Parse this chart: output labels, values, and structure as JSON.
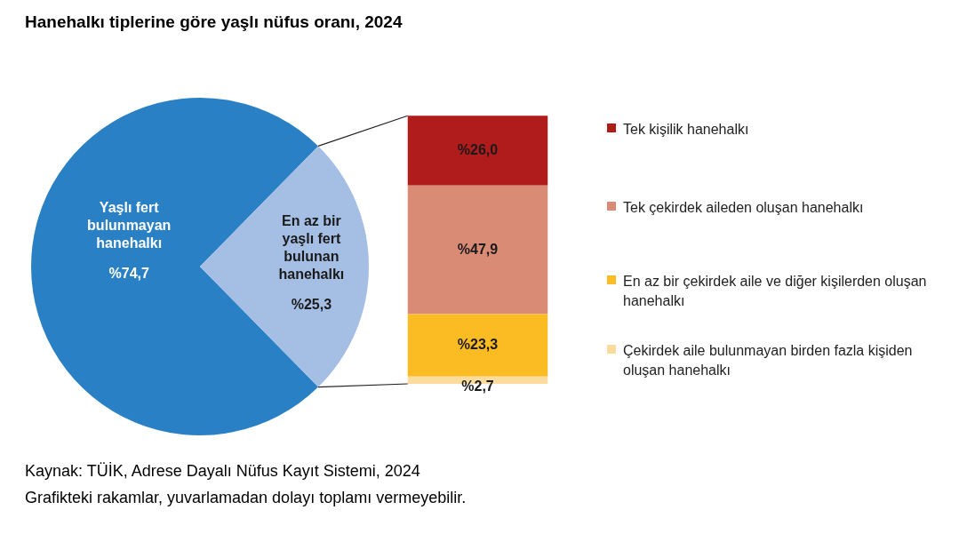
{
  "chart_data": [
    {
      "type": "pie",
      "title": "Hanehalkı tiplerine göre yaşlı nüfus oranı, 2024",
      "categories": [
        "Yaşlı fert bulunmayan hanehalkı",
        "En az bir yaşlı fert bulunan hanehalkı"
      ],
      "values": [
        74.7,
        25.3
      ],
      "value_labels": [
        "%74,7",
        "%25,3"
      ],
      "colors": [
        "#2a80c5",
        "#a4bee4"
      ],
      "annotations": [
        "Kaynak: TÜİK, Adrese Dayalı Nüfus Kayıt Sistemi, 2024",
        "Grafikteki rakamlar, yuvarlamadan dolayı toplamı vermeyebilir."
      ]
    },
    {
      "type": "bar",
      "stacked": true,
      "categories": [
        null
      ],
      "legend": "right",
      "series": [
        {
          "name": "Çekirdek aile bulunmayan birden fazla kişiden oluşan hanehalkı",
          "color": "#fcdc9c",
          "values": [
            2.7
          ],
          "value_labels": [
            "%2,7"
          ]
        },
        {
          "name": "En az bir çekirdek aile ve diğer kişilerden oluşan hanehalkı",
          "color": "#fbbb22",
          "values": [
            23.3
          ],
          "value_labels": [
            "%23,3"
          ]
        },
        {
          "name": "Tek çekirdek aileden oluşan hanehalkı",
          "color": "#d98b76",
          "values": [
            47.9
          ],
          "value_labels": [
            "%47,9"
          ]
        },
        {
          "name": "Tek kişilik hanehalkı",
          "color": "#b01b1b",
          "values": [
            26.0
          ],
          "value_labels": [
            "%26,0"
          ]
        }
      ]
    }
  ]
}
